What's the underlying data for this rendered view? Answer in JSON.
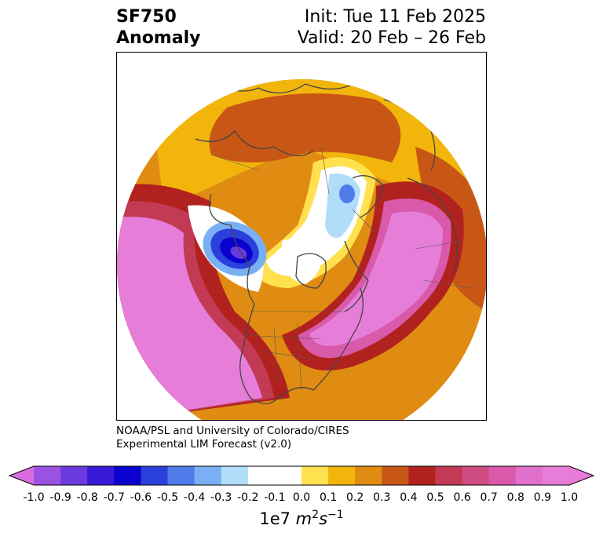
{
  "title": {
    "variable": "SF750",
    "type": "Anomaly",
    "init": "Init: Tue 11 Feb 2025",
    "valid": "Valid: 20 Feb – 26 Feb"
  },
  "credit": {
    "line1": "NOAA/PSL and University of Colorado/CIRES",
    "line2": "Experimental LIM Forecast (v2.0)"
  },
  "colorbar": {
    "ticks": [
      "-1.0",
      "-0.9",
      "-0.8",
      "-0.7",
      "-0.6",
      "-0.5",
      "-0.4",
      "-0.3",
      "-0.2",
      "-0.1",
      "0.0",
      "0.1",
      "0.2",
      "0.3",
      "0.4",
      "0.5",
      "0.6",
      "0.7",
      "0.8",
      "0.9",
      "1.0"
    ],
    "colors": [
      "#9a52e0",
      "#6b3ade",
      "#3a18d8",
      "#0a00cf",
      "#2b3fdb",
      "#4f7bea",
      "#78b0f3",
      "#b1ddfa",
      "#ffffff",
      "#ffffff",
      "#ffe14f",
      "#f2b50c",
      "#e08c12",
      "#c85716",
      "#b1221f",
      "#c23a53",
      "#cf4c80",
      "#d95aaa",
      "#e070cc",
      "#e67ed9"
    ],
    "under_color": "#d86ce0",
    "over_color": "#e87ad8",
    "units_prefix": "1e7",
    "units_m": "m",
    "units_m_exp": "2",
    "units_s": "s",
    "units_s_exp": "−1"
  },
  "map": {
    "projection": "north polar stereographic",
    "region": "Northern Hemisphere",
    "features": [
      "coastlines",
      "country borders",
      "state boundaries"
    ]
  }
}
